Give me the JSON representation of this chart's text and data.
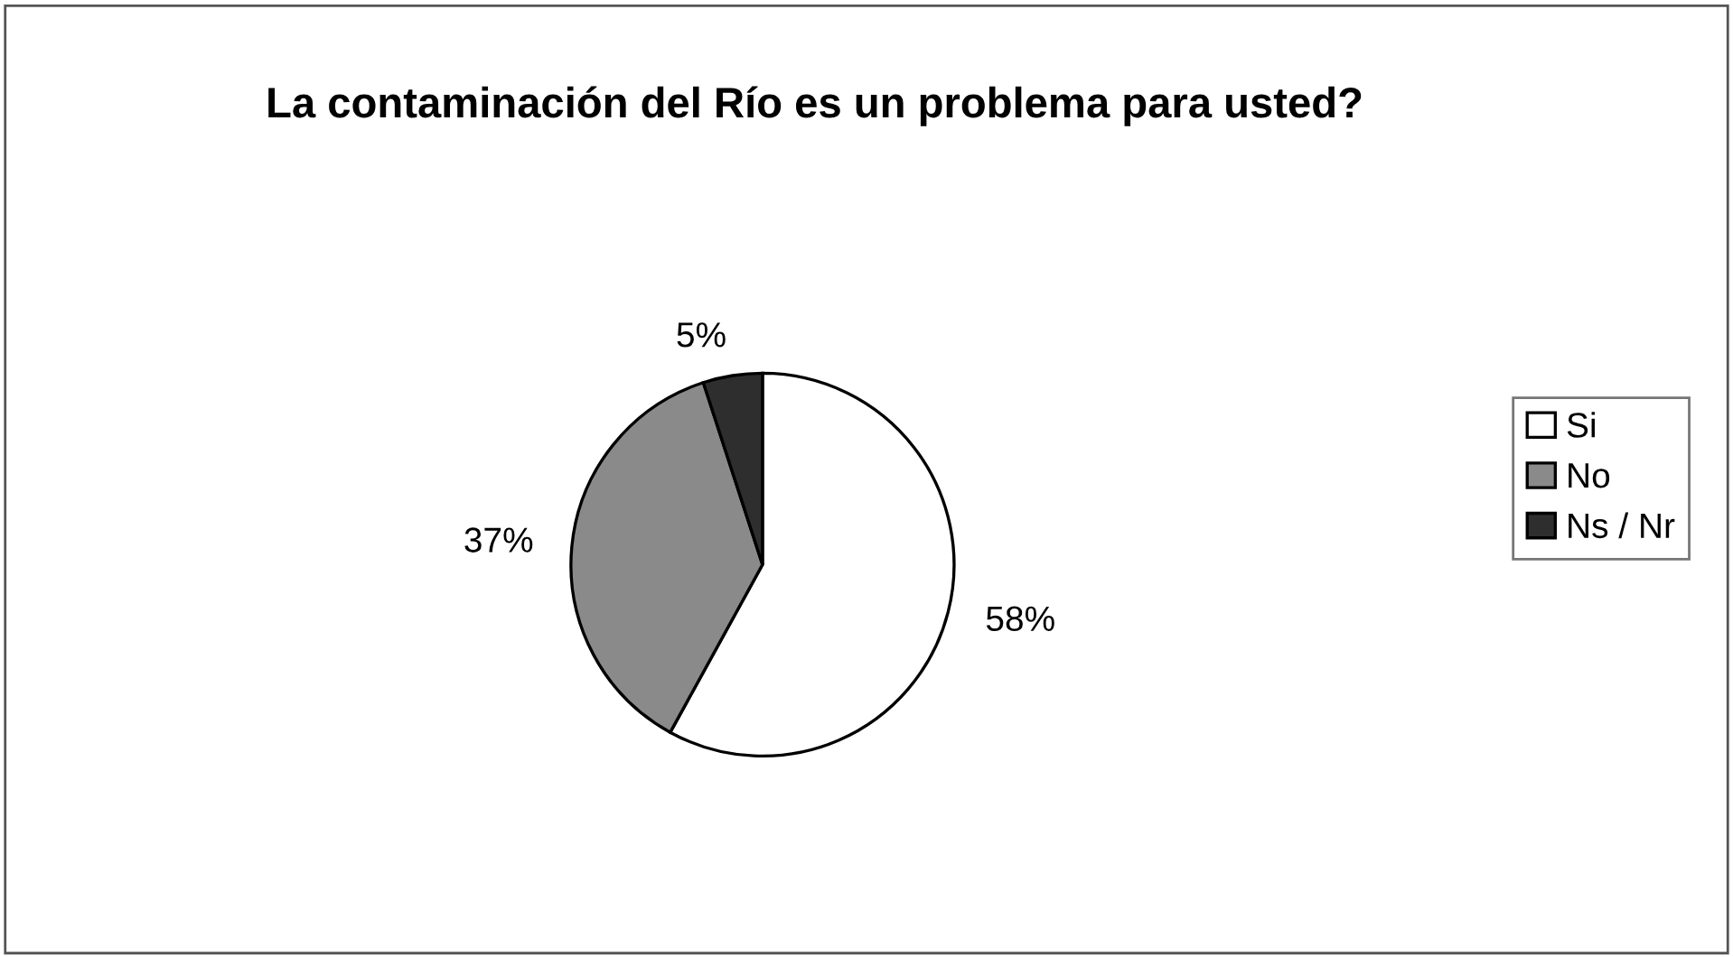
{
  "chart_data": {
    "type": "pie",
    "title": "La contaminación del Río es un problema para usted?",
    "categories": [
      "Si",
      "No",
      "Ns / Nr"
    ],
    "values": [
      58,
      37,
      5
    ],
    "colors": [
      "#ffffff",
      "#8a8a8a",
      "#2e2e2e"
    ],
    "value_labels": [
      "58%",
      "37%",
      "5%"
    ],
    "legend": "right"
  }
}
